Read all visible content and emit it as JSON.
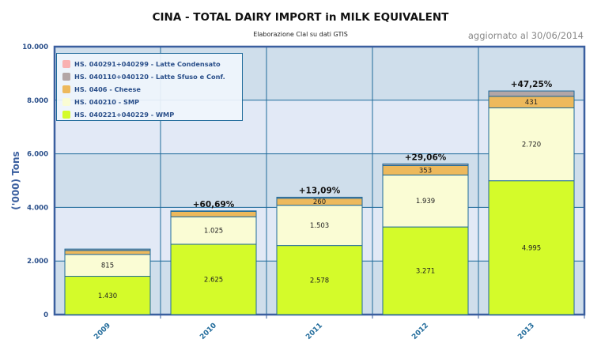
{
  "chart_data": {
    "type": "bar",
    "stacked": true,
    "title": "CINA - TOTAL DAIRY IMPORT in MILK EQUIVALENT",
    "subtitle": "Elaborazione Clal su dati GTIS",
    "updated": "aggiornato al 30/06/2014",
    "ylabel": "('000) Tons",
    "ylim": [
      0,
      10000
    ],
    "yticks": [
      0,
      2000,
      4000,
      6000,
      8000,
      10000
    ],
    "ytick_labels": [
      "0",
      "2.000",
      "4.000",
      "6.000",
      "8.000",
      "10.000"
    ],
    "categories": [
      "2009",
      "2010",
      "2011",
      "2012",
      "2013"
    ],
    "series": [
      {
        "name": "HS. 040221+040229 - WMP",
        "color": "#d4fb2a",
        "values": [
          1430,
          2625,
          2578,
          3271,
          4995
        ],
        "labels": [
          "1.430",
          "2.625",
          "2.578",
          "3.271",
          "4.995"
        ]
      },
      {
        "name": "HS. 040210 - SMP",
        "color": "#fafcd4",
        "values": [
          815,
          1025,
          1503,
          1939,
          2720
        ],
        "labels": [
          "815",
          "1.025",
          "1.503",
          "1.939",
          "2.720"
        ]
      },
      {
        "name": "HS. 0406 - Cheese",
        "color": "#edb95c",
        "values": [
          150,
          200,
          260,
          353,
          431
        ],
        "labels": [
          null,
          null,
          "260",
          "353",
          "431"
        ]
      },
      {
        "name": "HS. 040110+040120 - Latte Sfuso e Conf.",
        "color": "#b3a6a6",
        "values": [
          50,
          20,
          40,
          60,
          200
        ],
        "labels": [
          null,
          null,
          null,
          null,
          null
        ]
      },
      {
        "name": "HS. 040291+040299 - Latte Condensato",
        "color": "#f9b1b1",
        "values": [
          0,
          0,
          0,
          0,
          0
        ],
        "labels": [
          null,
          null,
          null,
          null,
          null
        ]
      }
    ],
    "growth_labels": [
      null,
      "+60,69%",
      "+13,09%",
      "+29,06%",
      "+47,25%"
    ],
    "legend_position": "top-left",
    "grid": true
  }
}
